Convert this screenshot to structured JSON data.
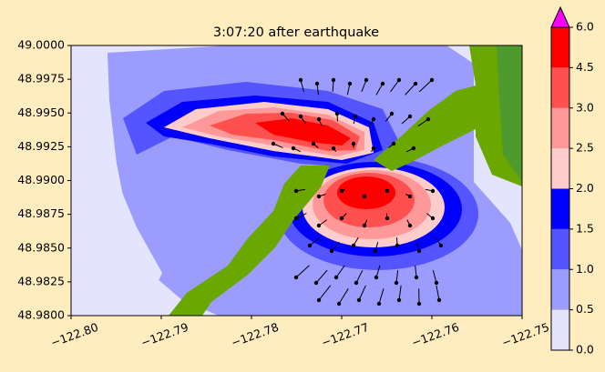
{
  "chart_data": {
    "type": "contourf",
    "title": "3:07:20 after earthquake",
    "xlim": [
      -122.8,
      -122.75
    ],
    "xticks": [
      {
        "value": -122.8,
        "label": "−122.80"
      },
      {
        "value": -122.79,
        "label": "−122.79"
      },
      {
        "value": -122.78,
        "label": "−122.78"
      },
      {
        "value": -122.77,
        "label": "−122.77"
      },
      {
        "value": -122.76,
        "label": "−122.76"
      },
      {
        "value": -122.75,
        "label": "−122.75"
      }
    ],
    "ylim": [
      48.98,
      49.0
    ],
    "yticks": [
      {
        "value": 48.98,
        "label": "48.9800"
      },
      {
        "value": 48.9825,
        "label": "48.9825"
      },
      {
        "value": 48.985,
        "label": "48.9850"
      },
      {
        "value": 48.9875,
        "label": "48.9875"
      },
      {
        "value": 48.99,
        "label": "48.9900"
      },
      {
        "value": 48.9925,
        "label": "48.9925"
      },
      {
        "value": 48.995,
        "label": "48.9950"
      },
      {
        "value": 48.9975,
        "label": "48.9975"
      },
      {
        "value": 49.0,
        "label": "49.0000"
      }
    ],
    "colorbar": {
      "ticks": [
        {
          "value": 0,
          "label": "0.0"
        },
        0.5,
        {
          "value": 1,
          "label": "1.0"
        },
        1.5,
        {
          "value": 2,
          "label": "2.0"
        },
        2.5,
        {
          "value": 3,
          "label": "3.0"
        },
        4.5,
        {
          "value": 6,
          "label": "6.0"
        }
      ],
      "colors": [
        "#e4e4ff",
        "#9c9cff",
        "#5555ff",
        "#0000ff",
        "#ffcccc",
        "#ff9999",
        "#ff5050",
        "#ff0000"
      ],
      "extend_color": "#ff00ff"
    }
  }
}
